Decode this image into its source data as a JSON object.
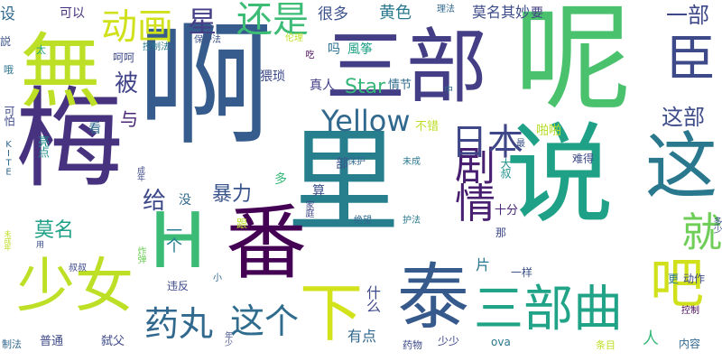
{
  "words": [
    {
      "text": "梅",
      "color": "#46327e",
      "size": 120
    },
    {
      "text": "啊",
      "color": "#365c8d",
      "size": 150
    },
    {
      "text": "里",
      "color": "#277f8e",
      "size": 125
    },
    {
      "text": "说",
      "color": "#1fa187",
      "size": 120
    },
    {
      "text": "三部",
      "color": "#433e85",
      "size": 90
    },
    {
      "text": "呢",
      "color": "#4ac16d",
      "size": 130
    },
    {
      "text": "無",
      "color": "#bddf26",
      "size": 90
    },
    {
      "text": "番",
      "color": "#440154",
      "size": 90
    },
    {
      "text": "泰",
      "color": "#375a8c",
      "size": 80
    },
    {
      "text": "少女",
      "color": "#bddf26",
      "size": 65
    },
    {
      "text": "这",
      "color": "#2a788e",
      "size": 80
    },
    {
      "text": "三部曲",
      "color": "#20a386",
      "size": 55
    },
    {
      "text": "H",
      "color": "#3bbb75",
      "size": 85
    },
    {
      "text": "吧",
      "color": "#d0e11c",
      "size": 60
    },
    {
      "text": "下",
      "color": "#d2e21b",
      "size": 70
    },
    {
      "text": "臣",
      "color": "#3e4989",
      "size": 55
    },
    {
      "text": "剧情",
      "color": "#481f70",
      "size": 45
    },
    {
      "text": "就",
      "color": "#6ece58",
      "size": 45
    },
    {
      "text": "日本",
      "color": "#3f4788",
      "size": 40
    },
    {
      "text": "这个",
      "color": "#2f6c8e",
      "size": 38
    },
    {
      "text": "药丸",
      "color": "#31688e",
      "size": 38
    },
    {
      "text": "还是",
      "color": "#3cbc75",
      "size": 40
    },
    {
      "text": "动画",
      "color": "#d0e11c",
      "size": 40
    },
    {
      "text": "Yellow",
      "color": "#31688e",
      "size": 32
    },
    {
      "text": "星",
      "color": "#433e85",
      "size": 32
    },
    {
      "text": "被",
      "color": "#404387",
      "size": 26
    },
    {
      "text": "给",
      "color": "#3e4989",
      "size": 26
    },
    {
      "text": "与",
      "color": "#482576",
      "size": 20
    },
    {
      "text": "一部",
      "color": "#3e4989",
      "size": 24
    },
    {
      "text": "这部",
      "color": "#3e4c8a",
      "size": 24
    },
    {
      "text": "暴力",
      "color": "#3a548c",
      "size": 22
    },
    {
      "text": "莫名",
      "color": "#1fa187",
      "size": 22
    },
    {
      "text": "Star",
      "color": "#35b779",
      "size": 22
    },
    {
      "text": "一个",
      "color": "#287d8e",
      "size": 18
    },
    {
      "text": "很多",
      "color": "#3b528b",
      "size": 17
    },
    {
      "text": "黄色",
      "color": "#2a788e",
      "size": 18
    },
    {
      "text": "莫名其妙",
      "color": "#3e4c8a",
      "size": 16
    },
    {
      "text": "设",
      "color": "#31688e",
      "size": 17
    },
    {
      "text": "可以",
      "color": "#46327e",
      "size": 14
    },
    {
      "text": "要",
      "color": "#433e85",
      "size": 14
    },
    {
      "text": "理法",
      "color": "#31688e",
      "size": 10
    },
    {
      "text": "伦理",
      "color": "#bddf26",
      "size": 10
    },
    {
      "text": "吃",
      "color": "#440154",
      "size": 10
    },
    {
      "text": "控制法",
      "color": "#2a788e",
      "size": 10
    },
    {
      "text": "保护法",
      "color": "#3b528b",
      "size": 10
    },
    {
      "text": "風筝",
      "color": "#1fa187",
      "size": 14
    },
    {
      "text": "吗",
      "color": "#2c728e",
      "size": 14
    },
    {
      "text": "猥琐",
      "color": "#3e4989",
      "size": 14
    },
    {
      "text": "真人",
      "color": "#433e85",
      "size": 14
    },
    {
      "text": "情节",
      "color": "#2f6c8e",
      "size": 13
    },
    {
      "text": "啪啪",
      "color": "#b5de2b",
      "size": 14
    },
    {
      "text": "不错",
      "color": "#bddf26",
      "size": 13
    },
    {
      "text": "看",
      "color": "#31688e",
      "size": 14
    },
    {
      "text": "亮点",
      "color": "#21918c",
      "size": 13
    },
    {
      "text": "可怕",
      "color": "#3e4989",
      "size": 12
    },
    {
      "text": "KITE",
      "color": "#31688e",
      "size": 10
    },
    {
      "text": "太",
      "color": "#1fa187",
      "size": 11
    },
    {
      "text": "哦",
      "color": "#2c728e",
      "size": 11
    },
    {
      "text": "説",
      "color": "#3b528b",
      "size": 12
    },
    {
      "text": "呵呵",
      "color": "#3e4989",
      "size": 12
    },
    {
      "text": "部",
      "color": "#3b528b",
      "size": 14
    },
    {
      "text": "保护",
      "color": "#31688e",
      "size": 10
    },
    {
      "text": "未成",
      "color": "#2a788e",
      "size": 10
    },
    {
      "text": "最",
      "color": "#3b528b",
      "size": 10
    },
    {
      "text": "中",
      "color": "#31688e",
      "size": 10
    },
    {
      "text": "大叔",
      "color": "#21918c",
      "size": 12
    },
    {
      "text": "难得",
      "color": "#3e4989",
      "size": 12
    },
    {
      "text": "成年",
      "color": "#3e4989",
      "size": 9
    },
    {
      "text": "多",
      "color": "#35b779",
      "size": 14
    },
    {
      "text": "算",
      "color": "#3b528b",
      "size": 14
    },
    {
      "text": "没",
      "color": "#31688e",
      "size": 14
    },
    {
      "text": "家庭",
      "color": "#3e4989",
      "size": 10
    },
    {
      "text": "十分",
      "color": "#482576",
      "size": 13
    },
    {
      "text": "跟",
      "color": "#bddf26",
      "size": 12
    },
    {
      "text": "绝望",
      "color": "#31688e",
      "size": 10
    },
    {
      "text": "护法",
      "color": "#2a788e",
      "size": 10
    },
    {
      "text": "那",
      "color": "#3e4989",
      "size": 12
    },
    {
      "text": "多少",
      "color": "#3b528b",
      "size": 10
    },
    {
      "text": "未成年",
      "color": "#bddf26",
      "size": 8
    },
    {
      "text": "用",
      "color": "#3b528b",
      "size": 9
    },
    {
      "text": "叔叔",
      "color": "#3e4989",
      "size": 10
    },
    {
      "text": "炸弹",
      "color": "#6ece58",
      "size": 10
    },
    {
      "text": "什么",
      "color": "#3e4989",
      "size": 16
    },
    {
      "text": "片",
      "color": "#2a788e",
      "size": 16
    },
    {
      "text": "一样",
      "color": "#3b528b",
      "size": 12
    },
    {
      "text": "更",
      "color": "#2a788e",
      "size": 12
    },
    {
      "text": "动作",
      "color": "#3e4989",
      "size": 12
    },
    {
      "text": "违反",
      "color": "#3e4989",
      "size": 12
    },
    {
      "text": "小",
      "color": "#31688e",
      "size": 10
    },
    {
      "text": "控制",
      "color": "#440154",
      "size": 10
    },
    {
      "text": "制法",
      "color": "#31688e",
      "size": 11
    },
    {
      "text": "普通",
      "color": "#3e4989",
      "size": 13
    },
    {
      "text": "弑父",
      "color": "#3e4989",
      "size": 13
    },
    {
      "text": "年少",
      "color": "#3e4989",
      "size": 9
    },
    {
      "text": "有点",
      "color": "#31688e",
      "size": 16
    },
    {
      "text": "药物",
      "color": "#3e4989",
      "size": 11
    },
    {
      "text": "少少",
      "color": "#3e4989",
      "size": 12
    },
    {
      "text": "ova",
      "color": "#2a788e",
      "size": 12
    },
    {
      "text": "条目",
      "color": "#bddf26",
      "size": 11
    },
    {
      "text": "人",
      "color": "#35b779",
      "size": 18
    },
    {
      "text": "内容",
      "color": "#31688e",
      "size": 12
    }
  ]
}
